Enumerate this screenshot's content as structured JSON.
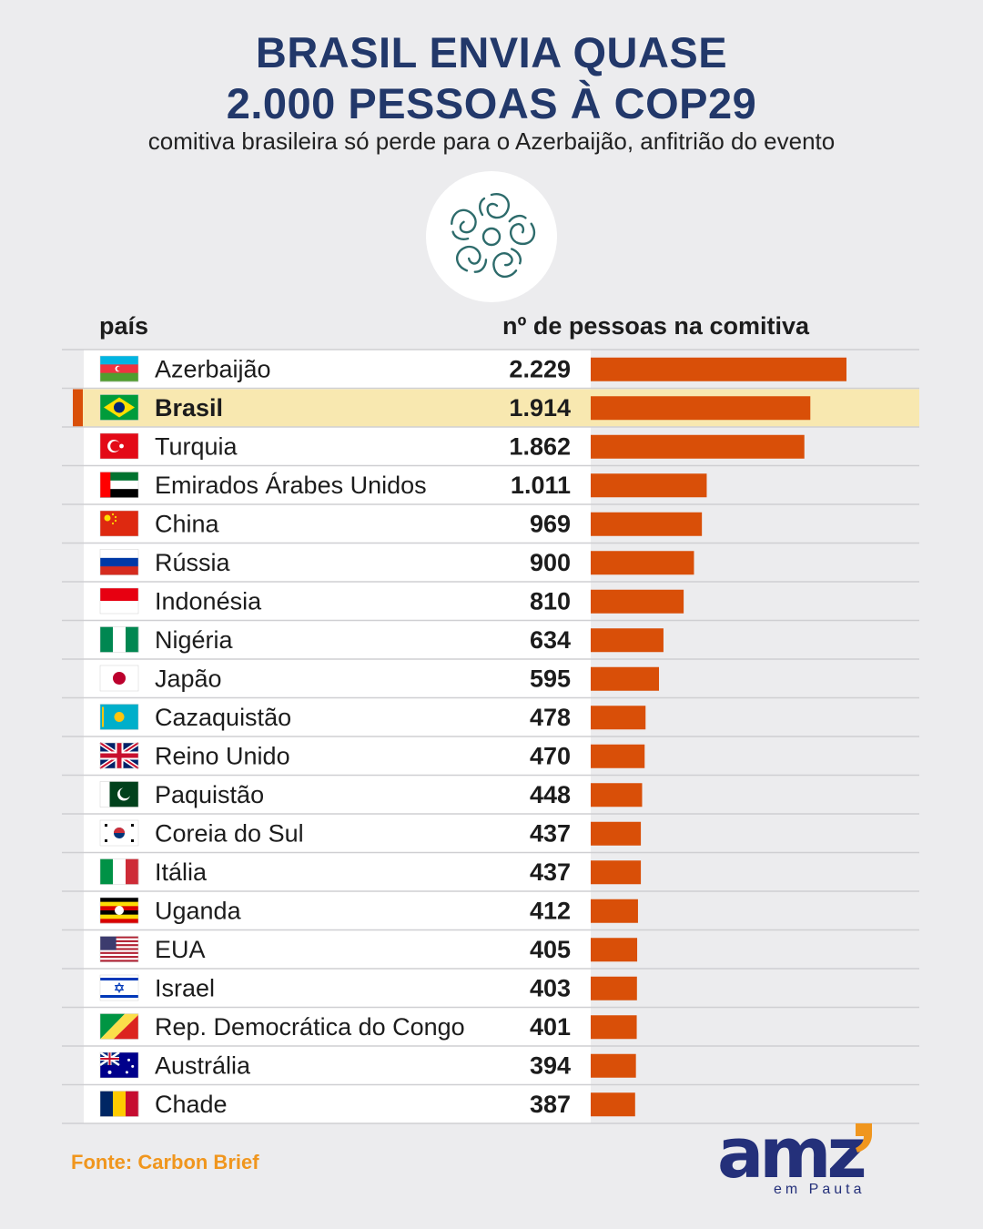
{
  "title_line1": "BRASIL ENVIA QUASE",
  "title_line2": "2.000 PESSOAS À COP29",
  "subtitle": "comitiva brasileira só perde para o Azerbaijão, anfitrião do evento",
  "header_country": "país",
  "header_count": "nº de pessoas na comitiva",
  "source": "Fonte: Carbon Brief",
  "brand_name": "amz",
  "brand_sub": "em Pauta",
  "colors": {
    "bar": "#d94f08",
    "highlight": "#f8e8b0",
    "title": "#22386a",
    "source": "#f0961e"
  },
  "highlight_country": "Brasil",
  "chart_data": {
    "type": "bar",
    "orientation": "horizontal",
    "title": "BRASIL ENVIA QUASE 2.000 PESSOAS À COP29",
    "xlabel": "nº de pessoas na comitiva",
    "ylabel": "país",
    "xlim": [
      0,
      2229
    ],
    "categories": [
      "Azerbaijão",
      "Brasil",
      "Turquia",
      "Emirados Árabes Unidos",
      "China",
      "Rússia",
      "Indonésia",
      "Nigéria",
      "Japão",
      "Cazaquistão",
      "Reino Unido",
      "Paquistão",
      "Coreia do Sul",
      "Itália",
      "Uganda",
      "EUA",
      "Israel",
      "Rep. Democrática do Congo",
      "Austrália",
      "Chade"
    ],
    "values": [
      2229,
      1914,
      1862,
      1011,
      969,
      900,
      810,
      634,
      595,
      478,
      470,
      448,
      437,
      437,
      412,
      405,
      403,
      401,
      394,
      387
    ],
    "labels": [
      "2.229",
      "1.914",
      "1.862",
      "1.011",
      "969",
      "900",
      "810",
      "634",
      "595",
      "478",
      "470",
      "448",
      "437",
      "437",
      "412",
      "405",
      "403",
      "401",
      "394",
      "387"
    ],
    "flags": [
      "azerbaijan-flag",
      "brazil-flag",
      "turkey-flag",
      "uae-flag",
      "china-flag",
      "russia-flag",
      "indonesia-flag",
      "nigeria-flag",
      "japan-flag",
      "kazakhstan-flag",
      "uk-flag",
      "pakistan-flag",
      "south-korea-flag",
      "italy-flag",
      "uganda-flag",
      "usa-flag",
      "israel-flag",
      "congo-flag",
      "australia-flag",
      "chad-flag"
    ]
  }
}
